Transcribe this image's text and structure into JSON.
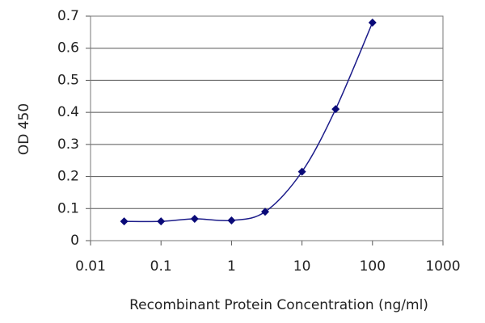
{
  "chart_data": {
    "type": "line",
    "x_label": "Recombinant Protein Concentration (ng/ml)",
    "y_label": "OD 450",
    "x": [
      0.03,
      0.1,
      0.3,
      1,
      3,
      10,
      30,
      100
    ],
    "series": [
      {
        "color": "#1c1c8a",
        "values": [
          0.06,
          0.06,
          0.068,
          0.063,
          0.09,
          0.215,
          0.41,
          0.68
        ]
      }
    ],
    "xlim": [
      0.01,
      1000
    ],
    "xticks": [
      0.01,
      0.1,
      1,
      10,
      100,
      1000
    ],
    "xscale": "log",
    "ylim": [
      0,
      0.7
    ],
    "yticks": [
      0,
      0.1,
      0.2,
      0.3,
      0.4,
      0.5,
      0.6,
      0.7
    ],
    "grid": true
  }
}
